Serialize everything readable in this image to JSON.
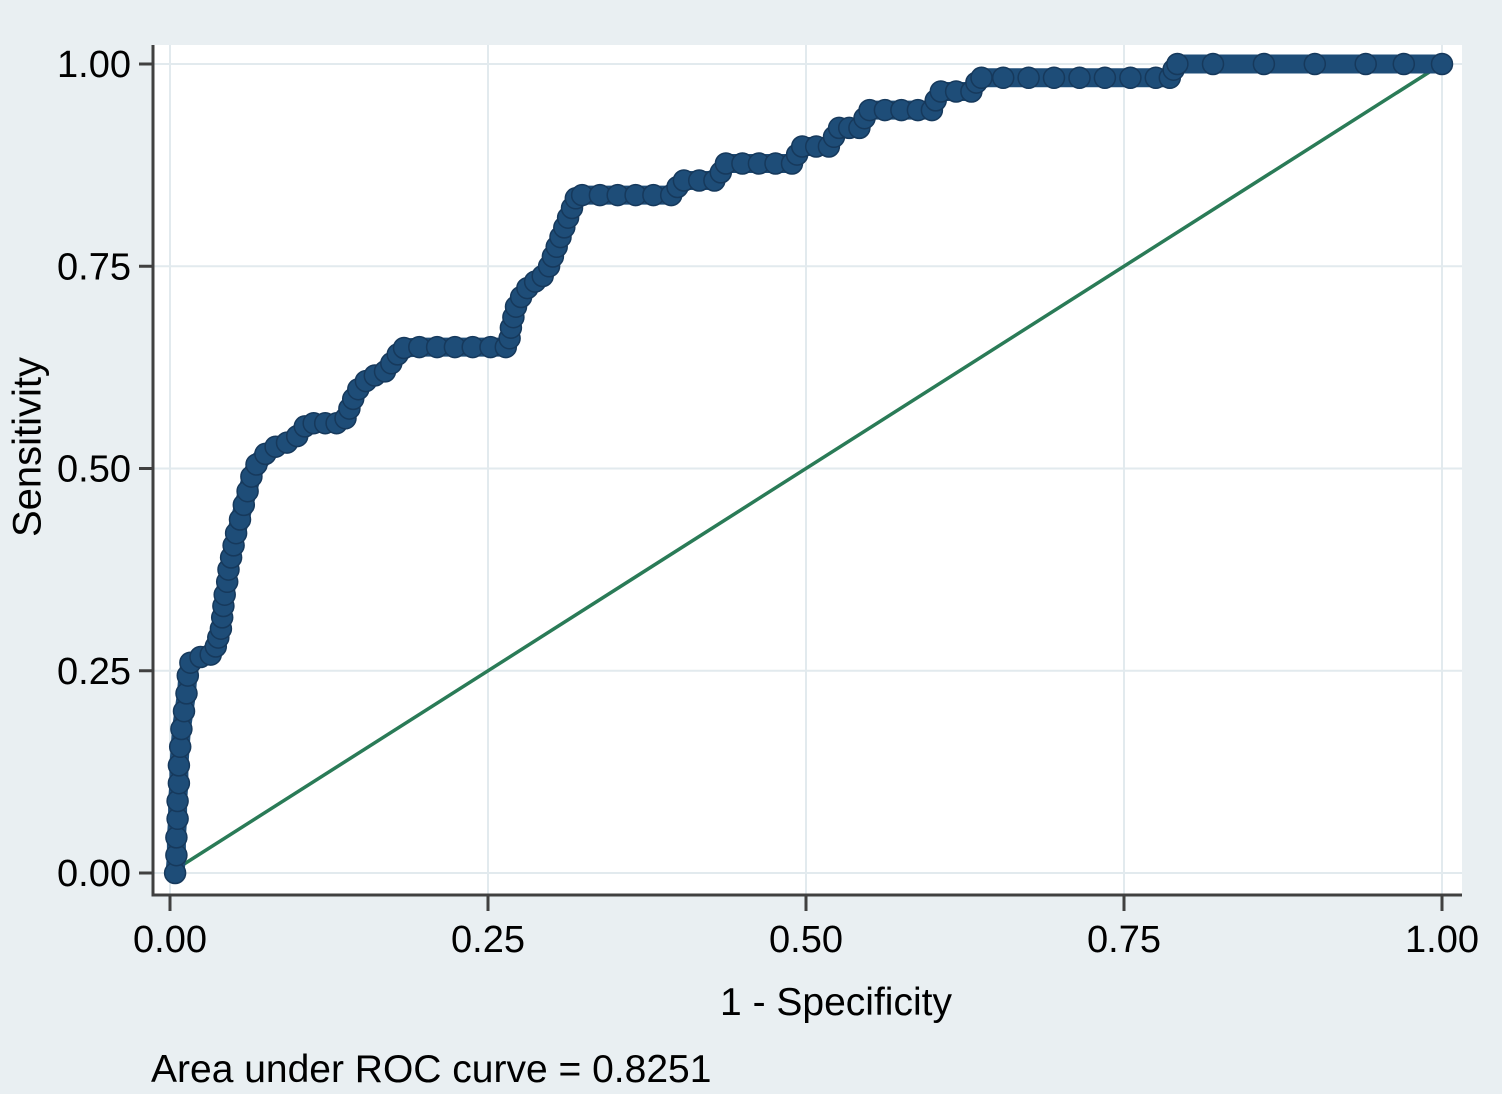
{
  "figure": {
    "background_color": "#e9eff2",
    "plot_background_color": "#ffffff",
    "grid_color": "#e2eaee",
    "axis_color": "#404040",
    "text_color": "#000000"
  },
  "chart_data": {
    "type": "line",
    "title": "",
    "xlabel": "1 - Specificity",
    "ylabel": "Sensitivity",
    "xlim": [
      0,
      1
    ],
    "ylim": [
      0,
      1
    ],
    "grid": true,
    "legend_position": "none",
    "annotation": "Area under ROC curve = 0.8251",
    "auc_value": 0.8251,
    "tick_values": [
      0,
      0.25,
      0.5,
      0.75,
      1
    ],
    "x_tick_labels": [
      "0.00",
      "0.25",
      "0.50",
      "0.75",
      "1.00"
    ],
    "y_tick_labels": [
      "0.00",
      "0.25",
      "0.50",
      "0.75",
      "1.00"
    ],
    "series": [
      {
        "name": "ROC curve",
        "style": "step-markers",
        "color": "#1e4d78",
        "edge_color": "#16395c",
        "marker": "circle",
        "points": [
          [
            0.004,
            0.0
          ],
          [
            0.005,
            0.022
          ],
          [
            0.005,
            0.044
          ],
          [
            0.006,
            0.067
          ],
          [
            0.006,
            0.089
          ],
          [
            0.007,
            0.111
          ],
          [
            0.007,
            0.133
          ],
          [
            0.008,
            0.156
          ],
          [
            0.009,
            0.178
          ],
          [
            0.011,
            0.2
          ],
          [
            0.013,
            0.222
          ],
          [
            0.014,
            0.244
          ],
          [
            0.016,
            0.26
          ],
          [
            0.024,
            0.267
          ],
          [
            0.032,
            0.27
          ],
          [
            0.036,
            0.28
          ],
          [
            0.038,
            0.291
          ],
          [
            0.04,
            0.302
          ],
          [
            0.041,
            0.316
          ],
          [
            0.042,
            0.33
          ],
          [
            0.043,
            0.344
          ],
          [
            0.045,
            0.36
          ],
          [
            0.046,
            0.375
          ],
          [
            0.048,
            0.39
          ],
          [
            0.05,
            0.405
          ],
          [
            0.052,
            0.42
          ],
          [
            0.055,
            0.437
          ],
          [
            0.058,
            0.455
          ],
          [
            0.061,
            0.472
          ],
          [
            0.064,
            0.49
          ],
          [
            0.068,
            0.505
          ],
          [
            0.075,
            0.518
          ],
          [
            0.083,
            0.527
          ],
          [
            0.092,
            0.532
          ],
          [
            0.1,
            0.54
          ],
          [
            0.106,
            0.552
          ],
          [
            0.113,
            0.556
          ],
          [
            0.122,
            0.556
          ],
          [
            0.131,
            0.556
          ],
          [
            0.138,
            0.562
          ],
          [
            0.141,
            0.574
          ],
          [
            0.144,
            0.586
          ],
          [
            0.148,
            0.598
          ],
          [
            0.154,
            0.608
          ],
          [
            0.161,
            0.615
          ],
          [
            0.169,
            0.62
          ],
          [
            0.174,
            0.63
          ],
          [
            0.179,
            0.641
          ],
          [
            0.184,
            0.649
          ],
          [
            0.196,
            0.65
          ],
          [
            0.21,
            0.65
          ],
          [
            0.224,
            0.65
          ],
          [
            0.238,
            0.65
          ],
          [
            0.252,
            0.65
          ],
          [
            0.264,
            0.65
          ],
          [
            0.267,
            0.661
          ],
          [
            0.268,
            0.674
          ],
          [
            0.27,
            0.687
          ],
          [
            0.272,
            0.7
          ],
          [
            0.276,
            0.712
          ],
          [
            0.281,
            0.723
          ],
          [
            0.287,
            0.731
          ],
          [
            0.293,
            0.738
          ],
          [
            0.298,
            0.75
          ],
          [
            0.301,
            0.762
          ],
          [
            0.304,
            0.774
          ],
          [
            0.307,
            0.786
          ],
          [
            0.31,
            0.798
          ],
          [
            0.313,
            0.81
          ],
          [
            0.316,
            0.822
          ],
          [
            0.319,
            0.834
          ],
          [
            0.324,
            0.838
          ],
          [
            0.338,
            0.838
          ],
          [
            0.352,
            0.838
          ],
          [
            0.366,
            0.838
          ],
          [
            0.38,
            0.838
          ],
          [
            0.394,
            0.838
          ],
          [
            0.399,
            0.848
          ],
          [
            0.404,
            0.856
          ],
          [
            0.416,
            0.856
          ],
          [
            0.428,
            0.856
          ],
          [
            0.433,
            0.866
          ],
          [
            0.437,
            0.877
          ],
          [
            0.45,
            0.877
          ],
          [
            0.463,
            0.877
          ],
          [
            0.476,
            0.877
          ],
          [
            0.489,
            0.877
          ],
          [
            0.493,
            0.888
          ],
          [
            0.497,
            0.898
          ],
          [
            0.508,
            0.898
          ],
          [
            0.518,
            0.898
          ],
          [
            0.522,
            0.91
          ],
          [
            0.526,
            0.921
          ],
          [
            0.534,
            0.921
          ],
          [
            0.542,
            0.921
          ],
          [
            0.546,
            0.933
          ],
          [
            0.55,
            0.943
          ],
          [
            0.562,
            0.943
          ],
          [
            0.575,
            0.943
          ],
          [
            0.588,
            0.943
          ],
          [
            0.599,
            0.943
          ],
          [
            0.602,
            0.955
          ],
          [
            0.606,
            0.966
          ],
          [
            0.618,
            0.966
          ],
          [
            0.63,
            0.966
          ],
          [
            0.634,
            0.977
          ],
          [
            0.638,
            0.983
          ],
          [
            0.655,
            0.983
          ],
          [
            0.675,
            0.983
          ],
          [
            0.695,
            0.983
          ],
          [
            0.715,
            0.983
          ],
          [
            0.735,
            0.983
          ],
          [
            0.755,
            0.983
          ],
          [
            0.775,
            0.983
          ],
          [
            0.786,
            0.983
          ],
          [
            0.789,
            0.993
          ],
          [
            0.792,
            1.0
          ],
          [
            0.82,
            1.0
          ],
          [
            0.86,
            1.0
          ],
          [
            0.9,
            1.0
          ],
          [
            0.94,
            1.0
          ],
          [
            0.97,
            1.0
          ],
          [
            1.0,
            1.0
          ]
        ]
      },
      {
        "name": "Reference line",
        "style": "line",
        "color": "#2a7b57",
        "points": [
          [
            0,
            0
          ],
          [
            1,
            1
          ]
        ]
      }
    ]
  }
}
